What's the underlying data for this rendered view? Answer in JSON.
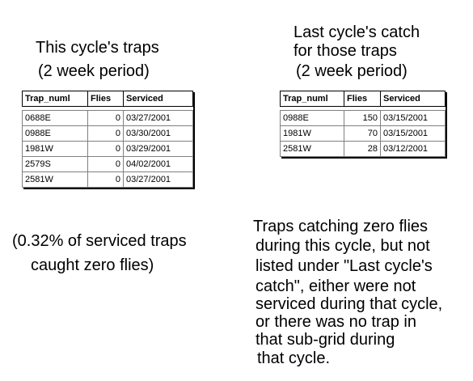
{
  "left": {
    "title": [
      "This cycle's traps",
      "(2 week period)"
    ],
    "table": {
      "columns": [
        "Trap_numl",
        "Flies",
        "Serviced"
      ],
      "rows": [
        [
          "0688E",
          "0",
          "03/27/2001"
        ],
        [
          "0988E",
          "0",
          "03/30/2001"
        ],
        [
          "1981W",
          "0",
          "03/29/2001"
        ],
        [
          "2579S",
          "0",
          "04/02/2001"
        ],
        [
          "2581W",
          "0",
          "03/27/2001"
        ]
      ]
    },
    "note": [
      "(0.32% of serviced traps",
      "caught zero flies)"
    ]
  },
  "right": {
    "title": [
      "Last cycle's catch",
      "for those traps",
      "(2 week period)"
    ],
    "table": {
      "columns": [
        "Trap_numl",
        "Flies",
        "Serviced"
      ],
      "rows": [
        [
          "0988E",
          "150",
          "03/15/2001"
        ],
        [
          "1981W",
          "70",
          "03/15/2001"
        ],
        [
          "2581W",
          "28",
          "03/12/2001"
        ]
      ]
    },
    "note": [
      "Traps catching zero flies",
      "during this cycle, but not",
      "listed under \"Last cycle's",
      "catch\", either were not",
      "serviced during that cycle,",
      "or there was no trap in",
      "that sub-grid during",
      "that cycle."
    ]
  }
}
